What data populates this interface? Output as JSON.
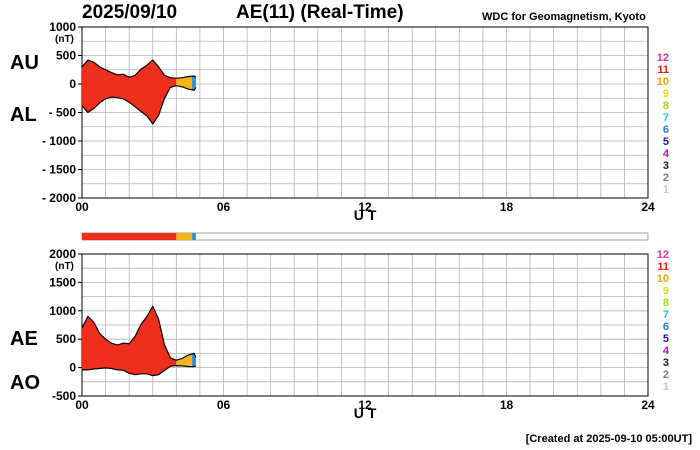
{
  "header": {
    "date": "2025/09/10",
    "title": "AE(11) (Real-Time)",
    "source": "WDC for Geomagnetism, Kyoto"
  },
  "footer": {
    "created": "[Created at 2025-09-10 05:00UT]"
  },
  "legend": {
    "labels": [
      "12",
      "11",
      "10",
      "9",
      "8",
      "7",
      "6",
      "5",
      "4",
      "3",
      "2",
      "1"
    ],
    "colors": [
      "#e8308c",
      "#e8201c",
      "#f0a000",
      "#f0e000",
      "#a8e000",
      "#20c8e0",
      "#2080e0",
      "#2010c0",
      "#c010c0",
      "#202020",
      "#808080",
      "#c8c8c8"
    ]
  },
  "colors": {
    "fill_main": "#ef2f1c",
    "fill_mid": "#f5b418",
    "fill_late": "#2c8ed6",
    "grid": "#b4b4b4"
  },
  "chart_data": [
    {
      "type": "area",
      "panel": "AU/AL",
      "series_labels": [
        "AU",
        "AL"
      ],
      "unit": "(nT)",
      "xlabel": "U T",
      "xlim": [
        0,
        24
      ],
      "x_ticks": [
        "00",
        "06",
        "12",
        "18",
        "24"
      ],
      "ylim": [
        -2000,
        1000
      ],
      "y_ticks": [
        "1000",
        "500",
        "0",
        "- 500",
        "- 1000",
        "- 1500",
        "- 2000"
      ],
      "y_tick_values": [
        1000,
        500,
        0,
        -500,
        -1000,
        -1500,
        -2000
      ],
      "x_hours": [
        0,
        0.25,
        0.5,
        0.75,
        1.0,
        1.25,
        1.5,
        1.75,
        2.0,
        2.25,
        2.5,
        2.75,
        3.0,
        3.25,
        3.5,
        3.75,
        4.0,
        4.25,
        4.5,
        4.75,
        4.83
      ],
      "AU": [
        300,
        420,
        380,
        300,
        250,
        200,
        160,
        170,
        120,
        150,
        260,
        330,
        420,
        300,
        150,
        110,
        100,
        110,
        130,
        140,
        120
      ],
      "AL": [
        -380,
        -500,
        -430,
        -330,
        -260,
        -230,
        -240,
        -260,
        -320,
        -400,
        -480,
        -560,
        -700,
        -550,
        -250,
        -60,
        -30,
        -50,
        -90,
        -110,
        -60
      ]
    },
    {
      "type": "area",
      "panel": "AE/AO",
      "series_labels": [
        "AE",
        "AO"
      ],
      "unit": "(nT)",
      "xlabel": "U T",
      "xlim": [
        0,
        24
      ],
      "x_ticks": [
        "00",
        "06",
        "12",
        "18",
        "24"
      ],
      "ylim": [
        -500,
        2000
      ],
      "y_ticks": [
        "2000",
        "1500",
        "1000",
        "500",
        "0",
        "-500"
      ],
      "y_tick_values": [
        2000,
        1500,
        1000,
        500,
        0,
        -500
      ],
      "x_hours": [
        0,
        0.25,
        0.5,
        0.75,
        1.0,
        1.25,
        1.5,
        1.75,
        2.0,
        2.25,
        2.5,
        2.75,
        3.0,
        3.25,
        3.5,
        3.75,
        4.0,
        4.25,
        4.5,
        4.75,
        4.83
      ],
      "AE": [
        700,
        900,
        800,
        600,
        500,
        430,
        400,
        430,
        420,
        550,
        760,
        900,
        1080,
        850,
        400,
        170,
        130,
        160,
        220,
        250,
        180
      ],
      "AO": [
        -40,
        -40,
        -25,
        -15,
        -5,
        -15,
        -40,
        -45,
        -100,
        -125,
        -110,
        -110,
        -140,
        -125,
        -50,
        25,
        35,
        30,
        20,
        15,
        30
      ]
    }
  ],
  "station_bar": {
    "segments": [
      {
        "from": 0,
        "to": 4.0,
        "color": "#ef2f1c"
      },
      {
        "from": 4.0,
        "to": 4.67,
        "color": "#f5b418"
      },
      {
        "from": 4.67,
        "to": 4.83,
        "color": "#2c8ed6"
      }
    ]
  }
}
